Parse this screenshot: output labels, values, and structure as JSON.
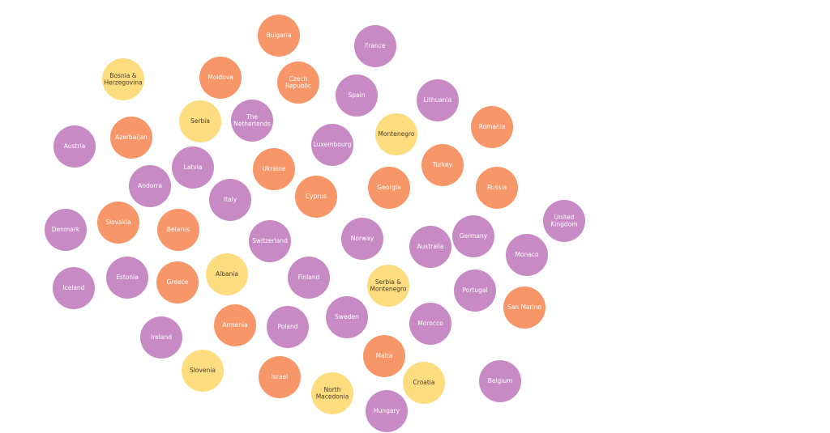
{
  "chart_data": {
    "type": "bubble",
    "colors": {
      "purple": "#c88ac4",
      "orange": "#f79668",
      "yellow": "#fddd80",
      "label_light": "#ffffff",
      "label_dark": "#4a3b2a"
    },
    "nodes": [
      {
        "name": "Bulgaria",
        "lines": [
          "Bulgaria"
        ],
        "group": "orange"
      },
      {
        "name": "France",
        "lines": [
          "France"
        ],
        "group": "purple"
      },
      {
        "name": "Bosnia & Herzegovina",
        "lines": [
          "Bosnia &",
          "Herzegovina"
        ],
        "group": "yellow"
      },
      {
        "name": "Moldova",
        "lines": [
          "Moldova"
        ],
        "group": "orange"
      },
      {
        "name": "Czech Republic",
        "lines": [
          "Czech",
          "Republic"
        ],
        "group": "orange"
      },
      {
        "name": "Spain",
        "lines": [
          "Spain"
        ],
        "group": "purple"
      },
      {
        "name": "Lithuania",
        "lines": [
          "Lithuania"
        ],
        "group": "purple"
      },
      {
        "name": "Serbia",
        "lines": [
          "Serbia"
        ],
        "group": "yellow"
      },
      {
        "name": "The Netherlands",
        "lines": [
          "The",
          "Netherlands"
        ],
        "group": "purple"
      },
      {
        "name": "Romania",
        "lines": [
          "Romania"
        ],
        "group": "orange"
      },
      {
        "name": "Azerbaijan",
        "lines": [
          "Azerbaijan"
        ],
        "group": "orange"
      },
      {
        "name": "Montenegro",
        "lines": [
          "Montenegro"
        ],
        "group": "yellow"
      },
      {
        "name": "Austria",
        "lines": [
          "Austria"
        ],
        "group": "purple"
      },
      {
        "name": "Luxembourg",
        "lines": [
          "Luxembourg"
        ],
        "group": "purple"
      },
      {
        "name": "Turkey",
        "lines": [
          "Turkey"
        ],
        "group": "orange"
      },
      {
        "name": "Latvia",
        "lines": [
          "Latvia"
        ],
        "group": "purple"
      },
      {
        "name": "Ukraine",
        "lines": [
          "Ukraine"
        ],
        "group": "orange"
      },
      {
        "name": "Andorra",
        "lines": [
          "Andorra"
        ],
        "group": "purple"
      },
      {
        "name": "Georgia",
        "lines": [
          "Georgia"
        ],
        "group": "orange"
      },
      {
        "name": "Russia",
        "lines": [
          "Russia"
        ],
        "group": "orange"
      },
      {
        "name": "Cyprus",
        "lines": [
          "Cyprus"
        ],
        "group": "orange"
      },
      {
        "name": "Italy",
        "lines": [
          "Italy"
        ],
        "group": "purple"
      },
      {
        "name": "United Kingdom",
        "lines": [
          "United",
          "Kingdom"
        ],
        "group": "purple"
      },
      {
        "name": "Denmark",
        "lines": [
          "Denmark"
        ],
        "group": "purple"
      },
      {
        "name": "Slovakia",
        "lines": [
          "Slovakia"
        ],
        "group": "orange"
      },
      {
        "name": "Belarus",
        "lines": [
          "Belarus"
        ],
        "group": "orange"
      },
      {
        "name": "Germany",
        "lines": [
          "Germany"
        ],
        "group": "purple"
      },
      {
        "name": "Norway",
        "lines": [
          "Norway"
        ],
        "group": "purple"
      },
      {
        "name": "Switzerland",
        "lines": [
          "Switzerland"
        ],
        "group": "purple"
      },
      {
        "name": "Australia",
        "lines": [
          "Australia"
        ],
        "group": "purple"
      },
      {
        "name": "Monaco",
        "lines": [
          "Monaco"
        ],
        "group": "purple"
      },
      {
        "name": "Estonia",
        "lines": [
          "Estonia"
        ],
        "group": "purple"
      },
      {
        "name": "Albania",
        "lines": [
          "Albania"
        ],
        "group": "yellow"
      },
      {
        "name": "Finland",
        "lines": [
          "Finland"
        ],
        "group": "purple"
      },
      {
        "name": "Iceland",
        "lines": [
          "Iceland"
        ],
        "group": "purple"
      },
      {
        "name": "Greece",
        "lines": [
          "Greece"
        ],
        "group": "orange"
      },
      {
        "name": "Serbia & Montenegro",
        "lines": [
          "Serbia &",
          "Montenegro"
        ],
        "group": "yellow"
      },
      {
        "name": "Portugal",
        "lines": [
          "Portugal"
        ],
        "group": "purple"
      },
      {
        "name": "San Marino",
        "lines": [
          "San Marino"
        ],
        "group": "orange"
      },
      {
        "name": "Armenia",
        "lines": [
          "Armenia"
        ],
        "group": "orange"
      },
      {
        "name": "Sweden",
        "lines": [
          "Sweden"
        ],
        "group": "purple"
      },
      {
        "name": "Poland",
        "lines": [
          "Poland"
        ],
        "group": "purple"
      },
      {
        "name": "Morocco",
        "lines": [
          "Morocco"
        ],
        "group": "purple"
      },
      {
        "name": "Ireland",
        "lines": [
          "Ireland"
        ],
        "group": "purple"
      },
      {
        "name": "Malta",
        "lines": [
          "Malta"
        ],
        "group": "orange"
      },
      {
        "name": "Slovenia",
        "lines": [
          "Slovenia"
        ],
        "group": "yellow"
      },
      {
        "name": "Israel",
        "lines": [
          "Israel"
        ],
        "group": "orange"
      },
      {
        "name": "Croatia",
        "lines": [
          "Croatia"
        ],
        "group": "yellow"
      },
      {
        "name": "Belgium",
        "lines": [
          "Belgium"
        ],
        "group": "purple"
      },
      {
        "name": "North Macedonia",
        "lines": [
          "North",
          "Macedonia"
        ],
        "group": "yellow"
      },
      {
        "name": "Hungary",
        "lines": [
          "Hungary"
        ],
        "group": "purple"
      }
    ]
  }
}
